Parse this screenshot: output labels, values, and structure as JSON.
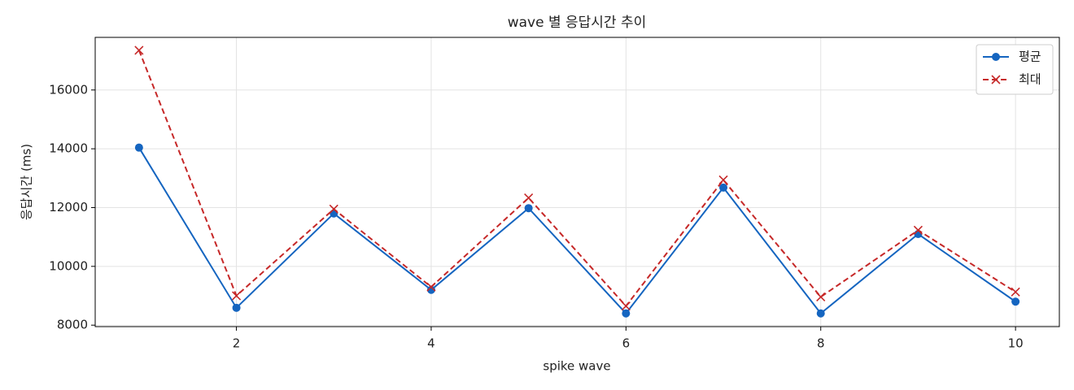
{
  "chart_data": {
    "type": "line",
    "title": "wave 별 응답시간 추이",
    "x_label": "spike wave",
    "y_label": "응답시간 (ms)",
    "x": [
      1,
      2,
      3,
      4,
      5,
      6,
      7,
      8,
      9,
      10
    ],
    "series": [
      {
        "name": "평균",
        "color": "#1565c0",
        "linestyle": "solid",
        "marker": "circle",
        "values": [
          14040,
          8590,
          11800,
          9200,
          11980,
          8400,
          12680,
          8400,
          11100,
          8800
        ]
      },
      {
        "name": "최대",
        "color": "#c62828",
        "linestyle": "dashed",
        "marker": "x",
        "values": [
          17350,
          9000,
          11950,
          9300,
          12330,
          8650,
          12940,
          8960,
          11230,
          9130
        ]
      }
    ],
    "xlim": [
      0.55,
      10.45
    ],
    "xticks": [
      2,
      4,
      6,
      8,
      10
    ],
    "ylim": [
      7950,
      17790
    ],
    "yticks": [
      8000,
      10000,
      12000,
      14000,
      16000
    ],
    "grid": true,
    "legend": "upper right"
  }
}
